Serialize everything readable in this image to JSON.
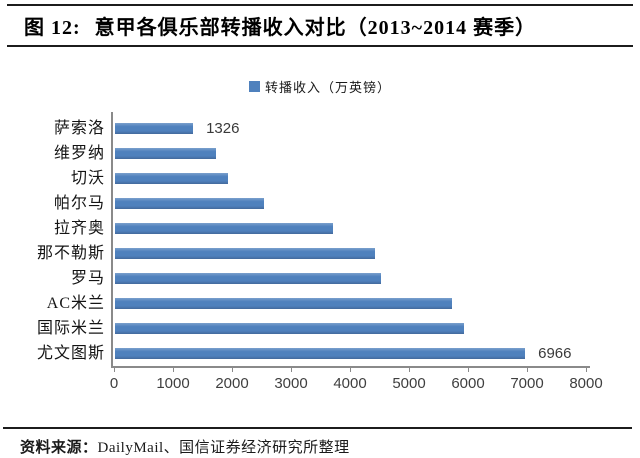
{
  "figure": {
    "number": "图 12:",
    "title": "意甲各俱乐部转播收入对比（2013~2014 赛季）"
  },
  "legend": {
    "label": "转播收入（万英镑）"
  },
  "source": {
    "label": "资料来源：",
    "text": "DailyMail、国信证券经济研究所整理"
  },
  "colors": {
    "bar": "#4F81BD",
    "axis": "#8A8A8A",
    "rule": "#1C1C1C"
  },
  "chart_data": {
    "type": "bar",
    "orientation": "horizontal",
    "title": "意甲各俱乐部转播收入对比（2013~2014 赛季）",
    "series_name": "转播收入（万英镑）",
    "categories_top_to_bottom": [
      "萨索洛",
      "维罗纳",
      "切沃",
      "帕尔马",
      "拉齐奥",
      "那不勒斯",
      "罗马",
      "AC米兰",
      "国际米兰",
      "尤文图斯"
    ],
    "values": [
      1326,
      1720,
      1920,
      2530,
      3700,
      4410,
      4520,
      5720,
      5930,
      6966
    ],
    "data_labels": {
      "萨索洛": "1326",
      "尤文图斯": "6966"
    },
    "xlim": [
      0,
      8000
    ],
    "x_ticks": [
      0,
      1000,
      2000,
      3000,
      4000,
      5000,
      6000,
      7000,
      8000
    ],
    "grid": false,
    "legend_position": "top-center",
    "bar_color": "#4F81BD"
  }
}
